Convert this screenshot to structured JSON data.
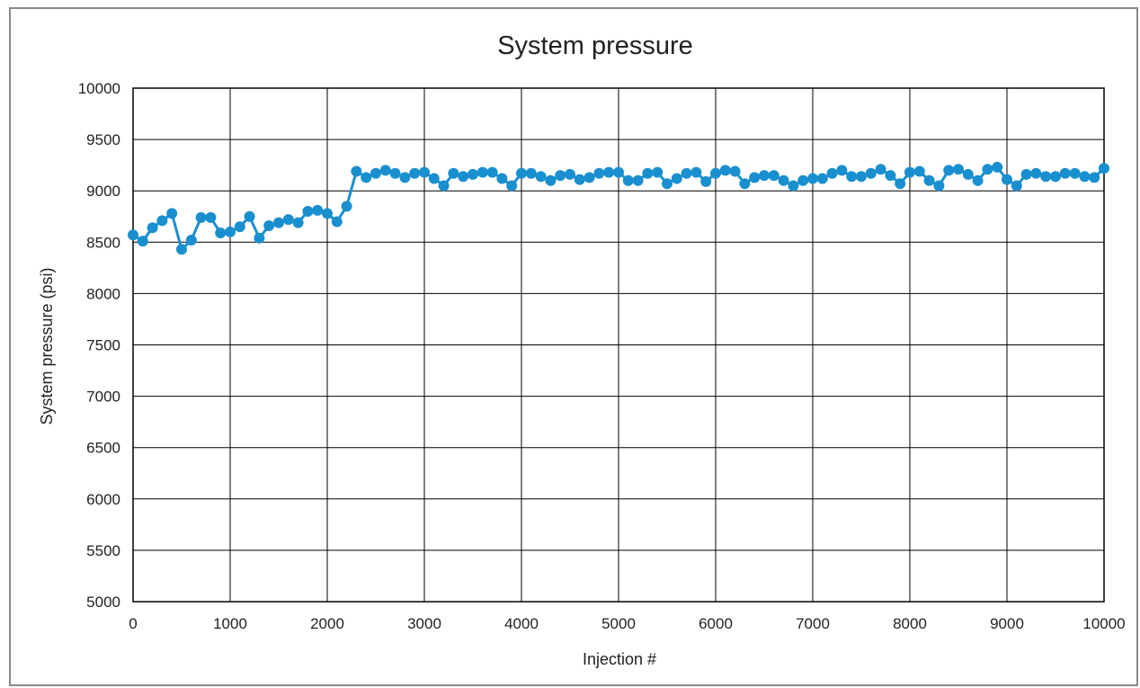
{
  "chart_data": {
    "type": "line",
    "title": "System pressure",
    "xlabel": "Injection #",
    "ylabel": "System pressure (psi)",
    "xlim": [
      0,
      10000
    ],
    "ylim": [
      5000,
      10000
    ],
    "xticks": [
      0,
      1000,
      2000,
      3000,
      4000,
      5000,
      6000,
      7000,
      8000,
      9000,
      10000
    ],
    "yticks": [
      5000,
      5500,
      6000,
      6500,
      7000,
      7500,
      8000,
      8500,
      9000,
      9500,
      10000
    ],
    "grid": true,
    "legend": "none",
    "colors": {
      "series": "#1a8fcf",
      "grid": "#000000",
      "text": "#222222"
    },
    "series": [
      {
        "x": [
          0,
          100,
          200,
          300,
          400,
          500,
          600,
          700,
          800,
          900,
          1000,
          1100,
          1200,
          1300,
          1400,
          1500,
          1600,
          1700,
          1800,
          1900,
          2000,
          2100,
          2200,
          2300,
          2400,
          2500,
          2600,
          2700,
          2800,
          2900,
          3000,
          3100,
          3200,
          3300,
          3400,
          3500,
          3600,
          3700,
          3800,
          3900,
          4000,
          4100,
          4200,
          4300,
          4400,
          4500,
          4600,
          4700,
          4800,
          4900,
          5000,
          5100,
          5200,
          5300,
          5400,
          5500,
          5600,
          5700,
          5800,
          5900,
          6000,
          6100,
          6200,
          6300,
          6400,
          6500,
          6600,
          6700,
          6800,
          6900,
          7000,
          7100,
          7200,
          7300,
          7400,
          7500,
          7600,
          7700,
          7800,
          7900,
          8000,
          8100,
          8200,
          8300,
          8400,
          8500,
          8600,
          8700,
          8800,
          8900,
          9000,
          9100,
          9200,
          9300,
          9400,
          9500,
          9600,
          9700,
          9800,
          9900,
          10000
        ],
        "y": [
          8570,
          8510,
          8640,
          8710,
          8780,
          8430,
          8520,
          8740,
          8740,
          8590,
          8600,
          8650,
          8750,
          8540,
          8660,
          8690,
          8720,
          8690,
          8800,
          8810,
          8780,
          8700,
          8850,
          9190,
          9130,
          9170,
          9200,
          9170,
          9130,
          9170,
          9180,
          9120,
          9050,
          9170,
          9140,
          9160,
          9180,
          9180,
          9120,
          9050,
          9170,
          9170,
          9140,
          9100,
          9150,
          9160,
          9110,
          9130,
          9170,
          9180,
          9180,
          9100,
          9100,
          9170,
          9180,
          9070,
          9120,
          9170,
          9180,
          9090,
          9170,
          9200,
          9190,
          9070,
          9130,
          9150,
          9150,
          9100,
          9050,
          9100,
          9120,
          9120,
          9170,
          9200,
          9140,
          9140,
          9170,
          9210,
          9150,
          9070,
          9180,
          9190,
          9100,
          9050,
          9200,
          9210,
          9160,
          9100,
          9210,
          9230,
          9110,
          9050,
          9160,
          9170,
          9140,
          9140,
          9170,
          9170,
          9140,
          9130,
          9220
        ]
      }
    ]
  }
}
